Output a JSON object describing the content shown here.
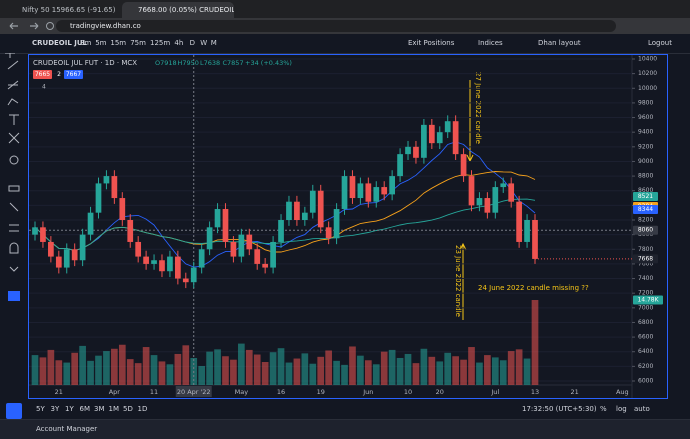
{
  "browser": {
    "tabs": [
      "Nifty 50 15966.65 (-91.65) | 0.57...",
      "7668.00 (0.05%) CRUDEOIL JUL F..."
    ],
    "url": "tradingview.dhan.co"
  },
  "toolbar": {
    "symbol": "CRUDEOIL JUL",
    "timeframes": [
      "3m",
      "5m",
      "15m",
      "75m",
      "125m",
      "4h",
      "D",
      "W",
      "M"
    ],
    "exit_positions": "Exit Positions",
    "indices": "Indices",
    "layout": "Dhan layout",
    "logout": "Logout"
  },
  "chart_data": {
    "type": "candlestick",
    "title": "CRUDEOIL JUL FUT · 1D · MCX",
    "ohlc_legend": [
      "O7918",
      "H7950",
      "L7638",
      "C7857",
      "+34 (+0.43%)"
    ],
    "badges": [
      "7665",
      "2",
      "7667"
    ],
    "indicator_count": "4",
    "candles": [
      [
        8000,
        8180,
        7920,
        8100
      ],
      [
        8100,
        8180,
        7820,
        7900
      ],
      [
        7900,
        7980,
        7620,
        7700
      ],
      [
        7700,
        7780,
        7470,
        7550
      ],
      [
        7550,
        7880,
        7470,
        7800
      ],
      [
        7800,
        7880,
        7570,
        7650
      ],
      [
        7650,
        8080,
        7570,
        8000
      ],
      [
        8000,
        8380,
        7920,
        8300
      ],
      [
        8300,
        8780,
        8220,
        8700
      ],
      [
        8700,
        8880,
        8620,
        8800
      ],
      [
        8800,
        8880,
        8420,
        8500
      ],
      [
        8500,
        8580,
        8120,
        8200
      ],
      [
        8200,
        8280,
        7820,
        7900
      ],
      [
        7900,
        7980,
        7620,
        7700
      ],
      [
        7700,
        7780,
        7520,
        7600
      ],
      [
        7600,
        7730,
        7520,
        7650
      ],
      [
        7650,
        7730,
        7420,
        7500
      ],
      [
        7500,
        7780,
        7420,
        7700
      ],
      [
        7700,
        7780,
        7320,
        7400
      ],
      [
        7400,
        7480,
        7270,
        7350
      ],
      [
        7350,
        7630,
        7270,
        7550
      ],
      [
        7550,
        7880,
        7470,
        7800
      ],
      [
        7800,
        8180,
        7720,
        8100
      ],
      [
        8100,
        8430,
        8020,
        8350
      ],
      [
        8350,
        8430,
        7820,
        7900
      ],
      [
        7900,
        7980,
        7620,
        7700
      ],
      [
        7700,
        8080,
        7620,
        8000
      ],
      [
        8000,
        8080,
        7720,
        7800
      ],
      [
        7800,
        7880,
        7520,
        7600
      ],
      [
        7600,
        7680,
        7470,
        7550
      ],
      [
        7550,
        7980,
        7470,
        7900
      ],
      [
        7900,
        8280,
        7820,
        8200
      ],
      [
        8200,
        8530,
        8120,
        8450
      ],
      [
        8450,
        8530,
        8120,
        8200
      ],
      [
        8200,
        8380,
        8120,
        8300
      ],
      [
        8300,
        8680,
        8220,
        8600
      ],
      [
        8600,
        8680,
        8020,
        8100
      ],
      [
        8100,
        8180,
        7870,
        7950
      ],
      [
        7950,
        8430,
        7870,
        8350
      ],
      [
        8350,
        8880,
        8270,
        8800
      ],
      [
        8800,
        8880,
        8420,
        8500
      ],
      [
        8500,
        8780,
        8420,
        8700
      ],
      [
        8700,
        8780,
        8370,
        8450
      ],
      [
        8450,
        8730,
        8370,
        8650
      ],
      [
        8650,
        8730,
        8470,
        8550
      ],
      [
        8550,
        8880,
        8470,
        8800
      ],
      [
        8800,
        9180,
        8720,
        9100
      ],
      [
        9100,
        9280,
        9020,
        9200
      ],
      [
        9200,
        9280,
        8970,
        9050
      ],
      [
        9050,
        9580,
        8970,
        9500
      ],
      [
        9500,
        9580,
        9170,
        9250
      ],
      [
        9250,
        9480,
        9170,
        9400
      ],
      [
        9400,
        9630,
        9320,
        9550
      ],
      [
        9550,
        9630,
        9020,
        9100
      ],
      [
        9100,
        9180,
        8720,
        8800
      ],
      [
        8800,
        8880,
        8320,
        8400
      ],
      [
        8400,
        8580,
        8320,
        8500
      ],
      [
        8500,
        8580,
        8220,
        8300
      ],
      [
        8300,
        8730,
        8220,
        8650
      ],
      [
        8650,
        8780,
        8570,
        8700
      ],
      [
        8700,
        8780,
        8370,
        8450
      ],
      [
        8450,
        8530,
        7820,
        7900
      ],
      [
        7900,
        8280,
        7820,
        8200
      ],
      [
        8200,
        8280,
        7600,
        7668
      ]
    ],
    "volumes": [
      5200,
      4800,
      6100,
      4300,
      3900,
      5600,
      6800,
      4200,
      5100,
      5900,
      6300,
      7000,
      4500,
      3800,
      6600,
      5200,
      4100,
      3600,
      5400,
      6900,
      4700,
      3300,
      5800,
      6200,
      5000,
      4400,
      7200,
      6100,
      5300,
      4000,
      5700,
      6400,
      3900,
      4600,
      5500,
      3700,
      4900,
      6000,
      4200,
      3500,
      6700,
      5100,
      4300,
      3600,
      5800,
      6100,
      4700,
      5400,
      3800,
      6300,
      4900,
      4100,
      5600,
      5000,
      4400,
      6600,
      3900,
      5200,
      4800,
      4300,
      5900,
      6200,
      4600,
      14780
    ],
    "volume_label": "14.78K",
    "up_color": "#26a69a",
    "down_color": "#ef5350",
    "ylim": [
      6000,
      10400
    ],
    "yticks": [
      6000,
      6200,
      6400,
      6600,
      6800,
      7000,
      7200,
      7400,
      7600,
      7800,
      8000,
      8200,
      8400,
      8600,
      8800,
      9000,
      9200,
      9400,
      9600,
      9800,
      10000,
      10200,
      10400
    ],
    "categories": [
      null,
      null,
      null,
      "21",
      null,
      null,
      null,
      null,
      null,
      null,
      "Apr",
      null,
      null,
      null,
      null,
      "11",
      null,
      null,
      null,
      null,
      "20 Apr '22",
      null,
      null,
      null,
      null,
      null,
      "May",
      null,
      null,
      null,
      null,
      "16",
      null,
      null,
      null,
      null,
      "19",
      null,
      null,
      null,
      null,
      null,
      "Jun",
      null,
      null,
      null,
      null,
      "10",
      null,
      null,
      null,
      "20",
      null,
      null,
      null,
      null,
      null,
      null,
      "Jul",
      null,
      null,
      null,
      null,
      "13"
    ],
    "future_categories": [
      null,
      null,
      null,
      null,
      "21",
      null,
      null,
      null,
      null,
      null,
      "Aug"
    ],
    "crosshair_index": 20,
    "crosshair_price": 8060,
    "ma_labels": [
      {
        "value": 8521,
        "color": "#26a69a"
      },
      {
        "value": 8384,
        "color": "#f7a21b"
      },
      {
        "value": 8344,
        "color": "#2962ff"
      }
    ],
    "last_price": 7668,
    "annotations": [
      "27 June 2022 candle",
      "23 June 2022 candle",
      "24 June 2022 candle missing ??"
    ]
  },
  "bottom": {
    "ranges": [
      "5Y",
      "3Y",
      "1Y",
      "6M",
      "3M",
      "1M",
      "5D",
      "1D"
    ],
    "time": "17:32:50 (UTC+5:30)",
    "percent": "%",
    "log": "log",
    "auto": "auto"
  },
  "footer": {
    "account_manager": "Account Manager"
  }
}
